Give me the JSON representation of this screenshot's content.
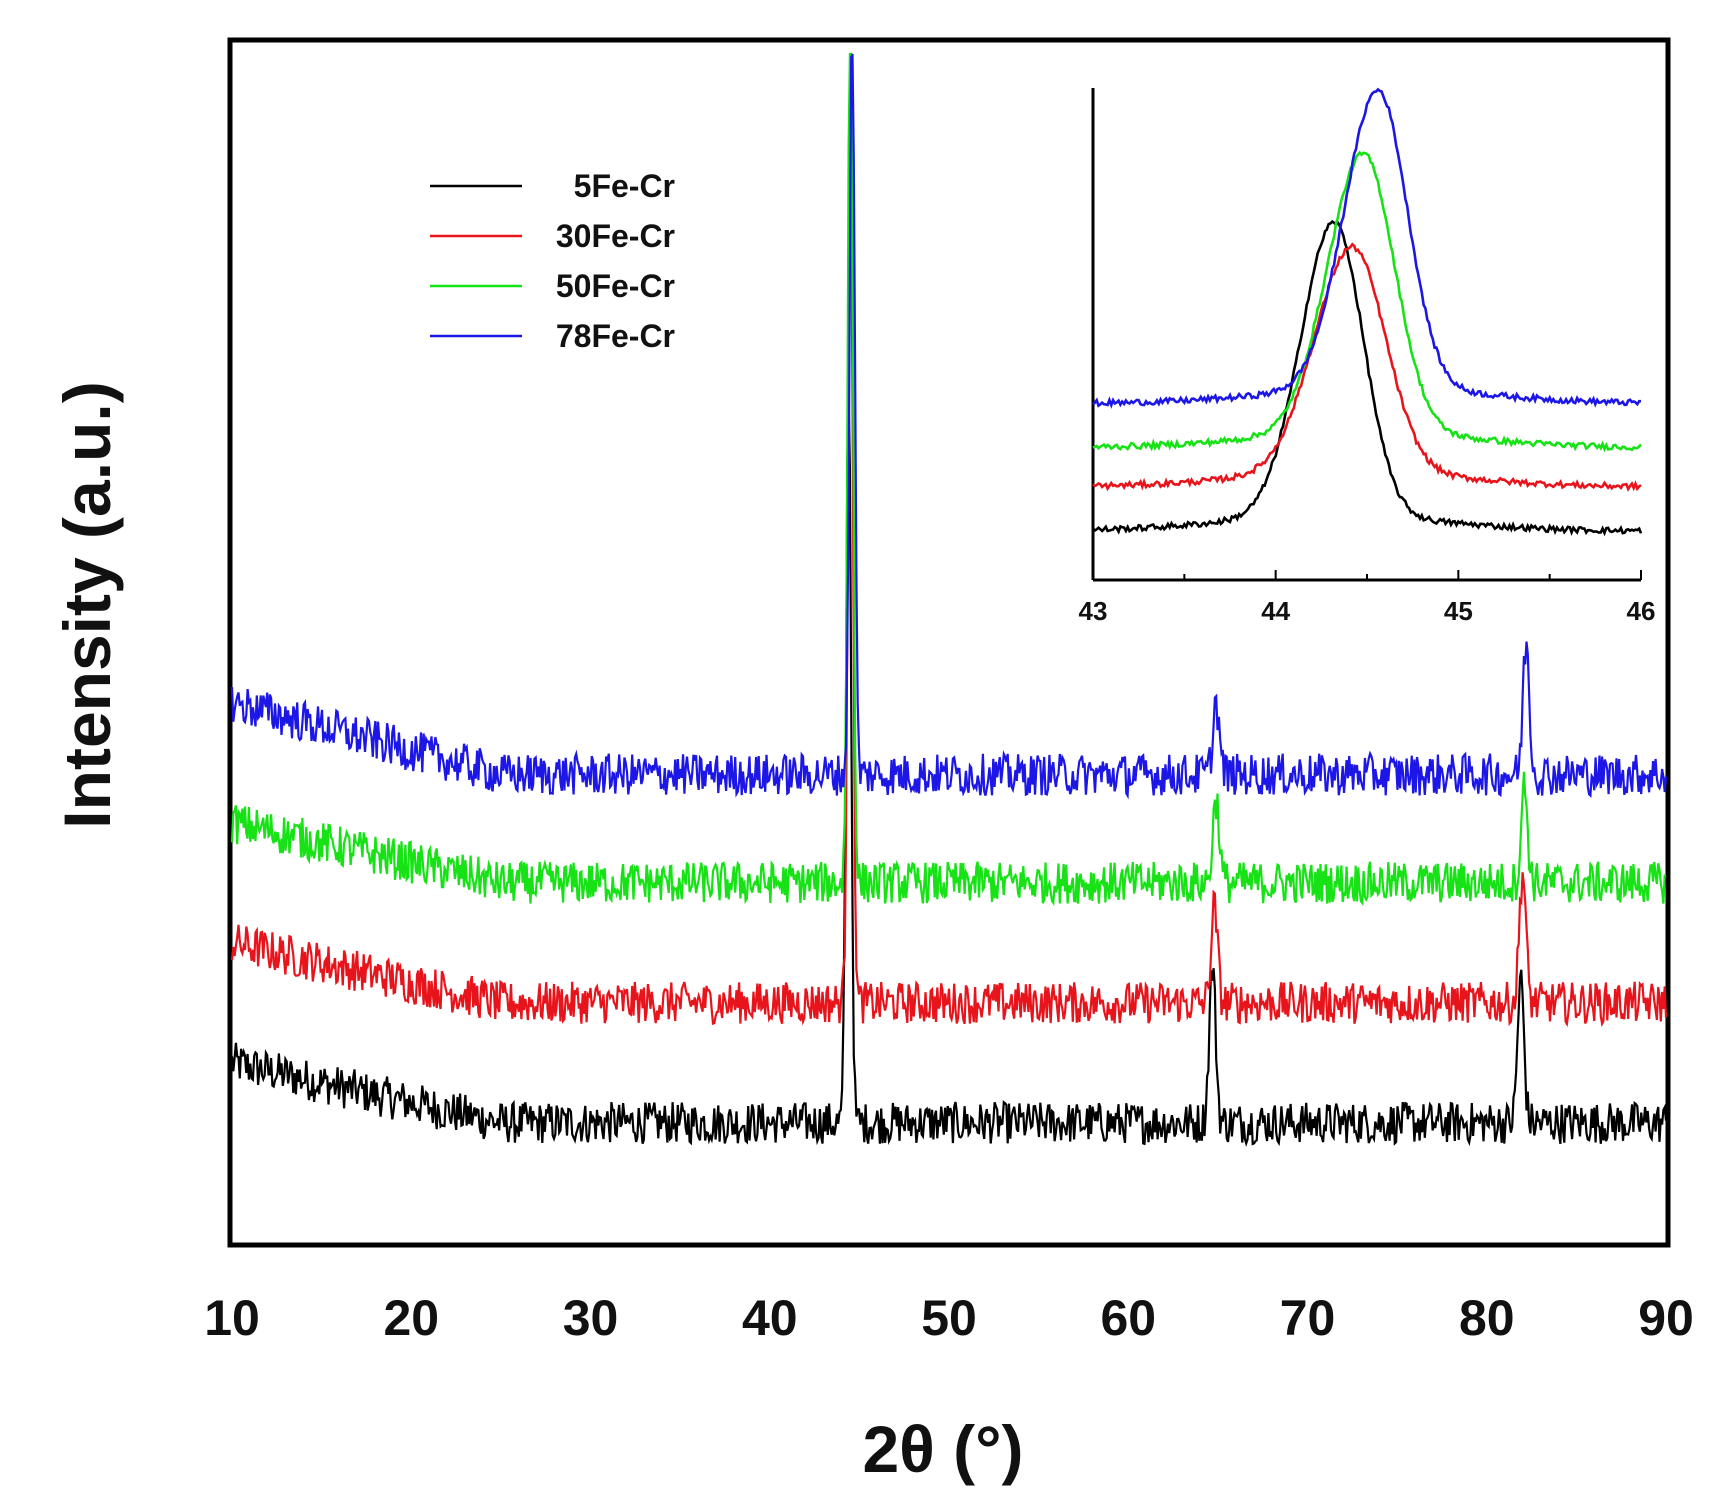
{
  "chart_data": [
    {
      "type": "line",
      "title": "",
      "xlabel": "2θ (°)",
      "ylabel": "Intensity (a.u.)",
      "xlim": [
        10,
        90
      ],
      "xticks": [
        10,
        20,
        30,
        40,
        50,
        60,
        70,
        80,
        90
      ],
      "yticks": [],
      "grid": false,
      "legend_position": "top-left",
      "peaks_2theta": [
        44.5,
        64.8,
        82.0
      ],
      "series": [
        {
          "name": "5Fe-Cr",
          "color": "#000000",
          "baseline": 0.1,
          "slope_start": 0.05,
          "peaks": [
            0.62,
            0.13,
            0.12
          ],
          "peak_centers": [
            44.4,
            64.7,
            81.9
          ]
        },
        {
          "name": "30Fe-Cr",
          "color": "#e8141c",
          "baseline": 0.2,
          "slope_start": 0.05,
          "peaks": [
            0.7,
            0.08,
            0.11
          ],
          "peak_centers": [
            44.5,
            64.8,
            82.0
          ]
        },
        {
          "name": "50Fe-Cr",
          "color": "#16e216",
          "baseline": 0.3,
          "slope_start": 0.05,
          "peaks": [
            0.78,
            0.07,
            0.08
          ],
          "peak_centers": [
            44.5,
            64.9,
            82.1
          ]
        },
        {
          "name": "78Fe-Cr",
          "color": "#1c16e6",
          "baseline": 0.39,
          "slope_start": 0.06,
          "peaks": [
            0.65,
            0.06,
            0.11
          ],
          "peak_centers": [
            44.6,
            64.9,
            82.2
          ]
        }
      ]
    },
    {
      "type": "line",
      "title": "inset",
      "xlabel": "",
      "ylabel": "",
      "xlim": [
        43,
        46
      ],
      "xticks": [
        43,
        44,
        45,
        46
      ],
      "series": [
        {
          "name": "5Fe-Cr",
          "color": "#000000",
          "baseline": 0.1,
          "peak_center": 44.32,
          "peak_height": 0.6,
          "width": 0.16
        },
        {
          "name": "30Fe-Cr",
          "color": "#e8141c",
          "baseline": 0.19,
          "peak_center": 44.42,
          "peak_height": 0.46,
          "width": 0.18
        },
        {
          "name": "50Fe-Cr",
          "color": "#16e216",
          "baseline": 0.27,
          "peak_center": 44.48,
          "peak_height": 0.57,
          "width": 0.17
        },
        {
          "name": "78Fe-Cr",
          "color": "#1c16e6",
          "baseline": 0.36,
          "peak_center": 44.56,
          "peak_height": 0.61,
          "width": 0.16
        }
      ]
    }
  ]
}
